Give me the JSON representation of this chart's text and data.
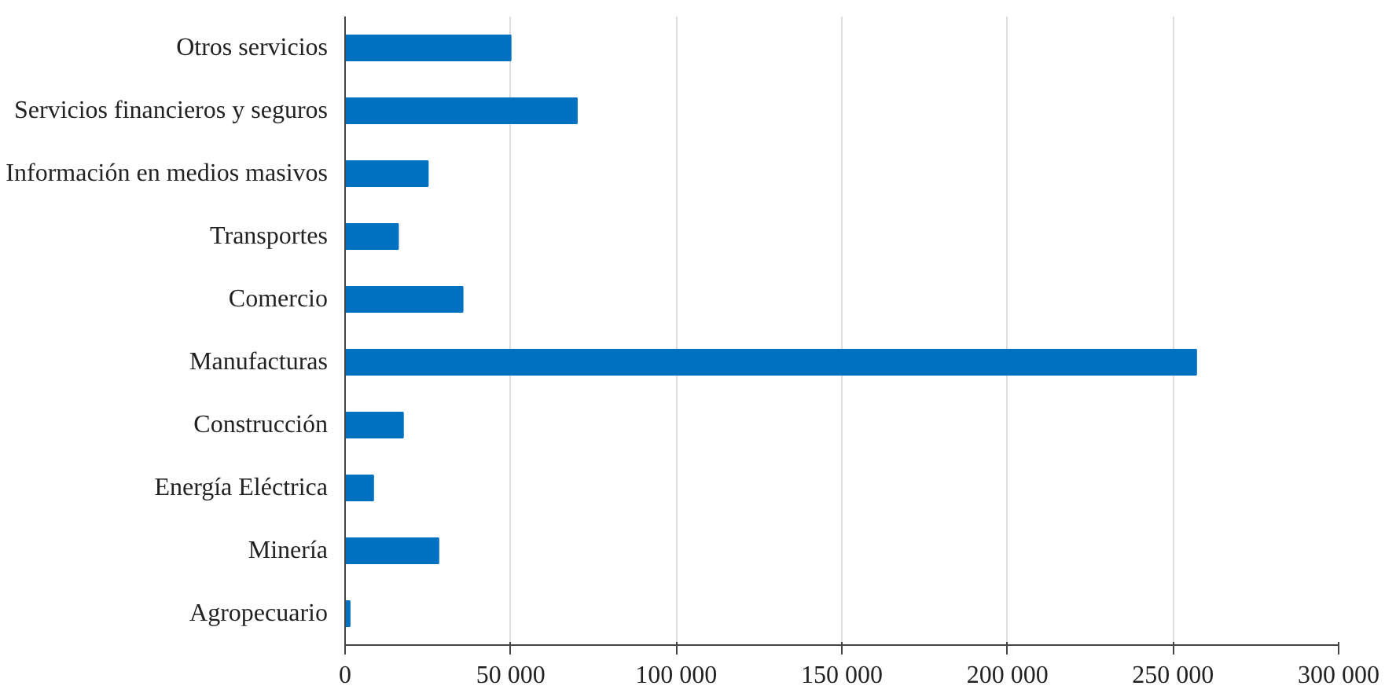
{
  "chart_data": {
    "type": "bar",
    "orientation": "horizontal",
    "categories": [
      "Otros servicios",
      "Servicios financieros y seguros",
      "Información en medios masivos",
      "Transportes",
      "Comercio",
      "Manufacturas",
      "Construcción",
      "Energía Eléctrica",
      "Minería",
      "Agropecuario"
    ],
    "values": [
      50000,
      70000,
      25000,
      16000,
      35500,
      257000,
      17500,
      8500,
      28200,
      1400
    ],
    "color": "#0070c0",
    "xlim": [
      0,
      300000
    ],
    "xticks": [
      0,
      {
        "value": 50000,
        "label": "50 000"
      },
      {
        "value": 100000,
        "label": "100 000"
      },
      {
        "value": 150000,
        "label": "150 000"
      },
      {
        "value": 200000,
        "label": "200 000"
      },
      {
        "value": 250000,
        "label": "250 000"
      },
      {
        "value": 300000,
        "label": "300 000"
      }
    ],
    "grid": "x"
  }
}
